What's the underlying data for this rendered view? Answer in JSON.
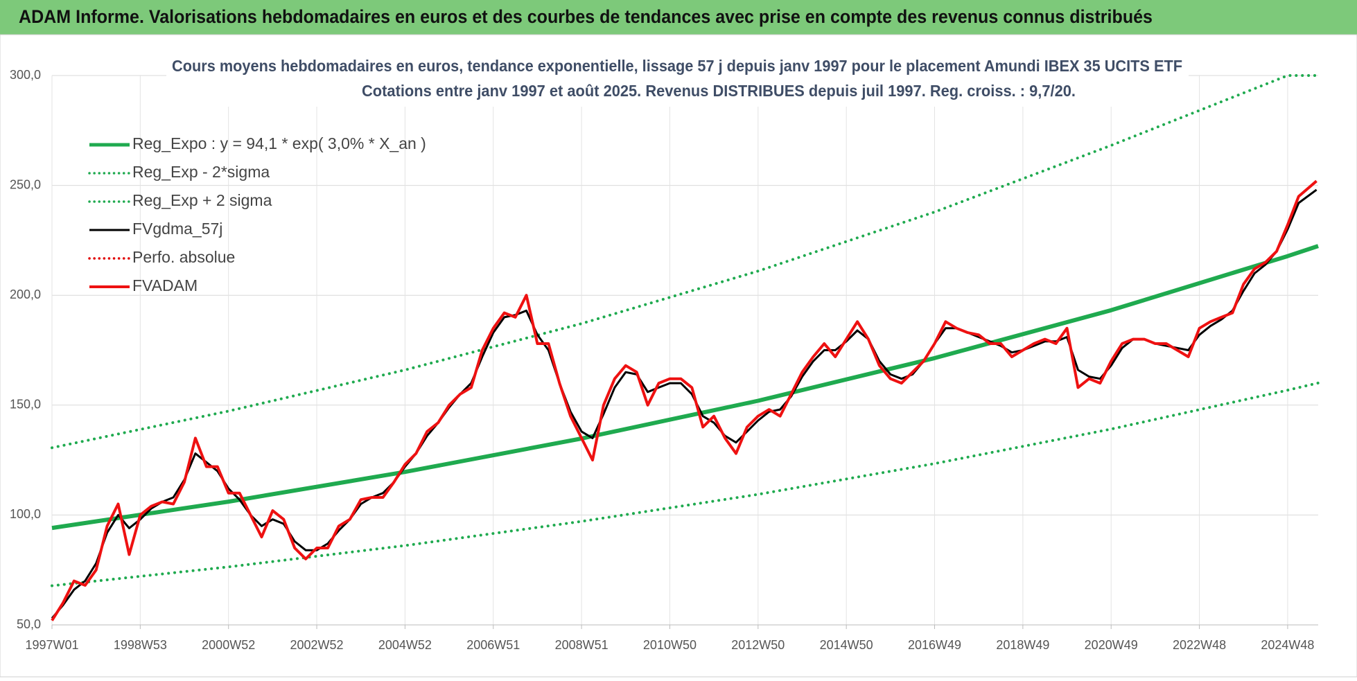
{
  "header": {
    "title": "ADAM Informe. Valorisations hebdomadaires en euros et des courbes de tendances avec prise en compte des revenus connus distribués"
  },
  "chart_data": {
    "type": "line",
    "title": "Cours moyens hebdomadaires en euros, tendance exponentielle, lissage 57 j depuis janv 1997  pour le placement Amundi IBEX 35 UCITS ETF",
    "subtitle": "Cotations entre janv 1997 et août 2025. Revenus DISTRIBUES depuis juil 1997. Reg. croiss. : 9,7/20.",
    "grid": true,
    "legend": "top-left",
    "xlim": [
      0,
      1492
    ],
    "xticks": [
      {
        "value": 0,
        "label": "1997W01"
      },
      {
        "value": 104,
        "label": "1998W53"
      },
      {
        "value": 208,
        "label": "2000W52"
      },
      {
        "value": 312,
        "label": "2002W52"
      },
      {
        "value": 416,
        "label": "2004W52"
      },
      {
        "value": 520,
        "label": "2006W51"
      },
      {
        "value": 624,
        "label": "2008W51"
      },
      {
        "value": 728,
        "label": "2010W50"
      },
      {
        "value": 832,
        "label": "2012W50"
      },
      {
        "value": 936,
        "label": "2014W50"
      },
      {
        "value": 1040,
        "label": "2016W49"
      },
      {
        "value": 1144,
        "label": "2018W49"
      },
      {
        "value": 1248,
        "label": "2020W49"
      },
      {
        "value": 1352,
        "label": "2022W48"
      },
      {
        "value": 1456,
        "label": "2024W48"
      }
    ],
    "ylim": [
      50,
      300
    ],
    "yticks": [
      {
        "value": 50,
        "label": "50,0"
      },
      {
        "value": 100,
        "label": "100,0"
      },
      {
        "value": 150,
        "label": "150,0"
      },
      {
        "value": 200,
        "label": "200,0"
      },
      {
        "value": 250,
        "label": "250,0"
      },
      {
        "value": 300,
        "label": "300,0"
      }
    ],
    "x": [
      0,
      13,
      26,
      39,
      52,
      65,
      78,
      91,
      104,
      117,
      130,
      143,
      156,
      169,
      182,
      195,
      208,
      221,
      234,
      247,
      260,
      273,
      286,
      299,
      312,
      325,
      338,
      351,
      364,
      377,
      390,
      403,
      416,
      429,
      442,
      455,
      468,
      481,
      494,
      507,
      520,
      533,
      546,
      559,
      572,
      585,
      598,
      611,
      624,
      637,
      650,
      663,
      676,
      689,
      702,
      715,
      728,
      741,
      754,
      767,
      780,
      793,
      806,
      819,
      832,
      845,
      858,
      871,
      884,
      897,
      910,
      923,
      936,
      949,
      962,
      975,
      988,
      1001,
      1014,
      1027,
      1040,
      1053,
      1066,
      1079,
      1092,
      1105,
      1118,
      1131,
      1144,
      1157,
      1170,
      1183,
      1196,
      1209,
      1222,
      1235,
      1248,
      1261,
      1274,
      1287,
      1300,
      1313,
      1326,
      1339,
      1352,
      1365,
      1378,
      1391,
      1404,
      1417,
      1430,
      1443,
      1456,
      1469,
      1490
    ],
    "series": [
      {
        "name": "Reg_Expo : y = 94,1 * exp( 3,0% *  X_an )",
        "color": "#1faa4f",
        "dash": "solid",
        "width": 6,
        "x": [
          0,
          208,
          416,
          624,
          832,
          1040,
          1248,
          1456,
          1492
        ],
        "values": [
          94.1,
          106.1,
          119.6,
          134.8,
          152.0,
          171.4,
          193.2,
          217.8,
          222.4
        ]
      },
      {
        "name": "Reg_Exp - 2*sigma",
        "color": "#1faa4f",
        "dash": "dotted",
        "width": 4,
        "x": [
          0,
          208,
          416,
          624,
          832,
          1040,
          1248,
          1456,
          1492
        ],
        "values": [
          67.8,
          76.4,
          86.1,
          97.1,
          109.4,
          123.4,
          139.1,
          156.8,
          160.1
        ]
      },
      {
        "name": "Reg_Exp + 2 sigma",
        "color": "#1faa4f",
        "dash": "dotted",
        "width": 4,
        "x": [
          0,
          208,
          416,
          624,
          832,
          1040,
          1248,
          1456,
          1492
        ],
        "values": [
          130.6,
          147.3,
          166.0,
          187.1,
          211.0,
          237.9,
          268.2,
          300,
          300
        ]
      },
      {
        "name": "FVgdma_57j",
        "color": "#000000",
        "dash": "solid",
        "width": 3,
        "values": [
          53,
          59,
          66,
          70,
          78,
          92,
          100,
          94,
          98,
          103,
          106,
          108,
          116,
          128,
          124,
          120,
          112,
          107,
          100,
          95,
          98,
          96,
          88,
          84,
          84,
          87,
          93,
          98,
          105,
          108,
          110,
          115,
          122,
          128,
          136,
          142,
          149,
          155,
          160,
          172,
          183,
          190,
          191,
          193,
          182,
          175,
          160,
          147,
          138,
          135,
          146,
          158,
          165,
          164,
          156,
          158,
          160,
          160,
          155,
          145,
          142,
          136,
          133,
          138,
          143,
          147,
          148,
          154,
          163,
          170,
          175,
          175,
          179,
          184,
          180,
          170,
          164,
          162,
          164,
          170,
          178,
          185,
          185,
          183,
          181,
          179,
          177,
          174,
          175,
          177,
          179,
          179,
          181,
          166,
          163,
          162,
          168,
          176,
          180,
          180,
          178,
          177,
          176,
          175,
          182,
          186,
          189,
          193,
          202,
          210,
          214,
          220,
          230,
          242,
          248
        ]
      },
      {
        "name": "Perfo. absolue",
        "color": "#e00000",
        "dash": "dotted",
        "width": 3,
        "x": [],
        "values": []
      },
      {
        "name": "FVADAM",
        "color": "#ee1111",
        "dash": "solid",
        "width": 4,
        "values": [
          52,
          60,
          70,
          68,
          75,
          95,
          105,
          82,
          100,
          104,
          106,
          105,
          115,
          135,
          122,
          122,
          110,
          110,
          100,
          90,
          102,
          98,
          85,
          80,
          85,
          85,
          95,
          98,
          107,
          108,
          108,
          115,
          123,
          128,
          138,
          142,
          150,
          155,
          158,
          175,
          185,
          192,
          190,
          200,
          178,
          178,
          160,
          145,
          135,
          125,
          150,
          162,
          168,
          165,
          150,
          160,
          162,
          162,
          158,
          140,
          145,
          135,
          128,
          140,
          145,
          148,
          145,
          155,
          165,
          172,
          178,
          172,
          180,
          188,
          180,
          168,
          162,
          160,
          165,
          170,
          178,
          188,
          185,
          183,
          182,
          178,
          178,
          172,
          175,
          178,
          180,
          178,
          185,
          158,
          162,
          160,
          170,
          178,
          180,
          180,
          178,
          178,
          175,
          172,
          185,
          188,
          190,
          192,
          205,
          212,
          215,
          220,
          232,
          245,
          252
        ]
      }
    ]
  }
}
